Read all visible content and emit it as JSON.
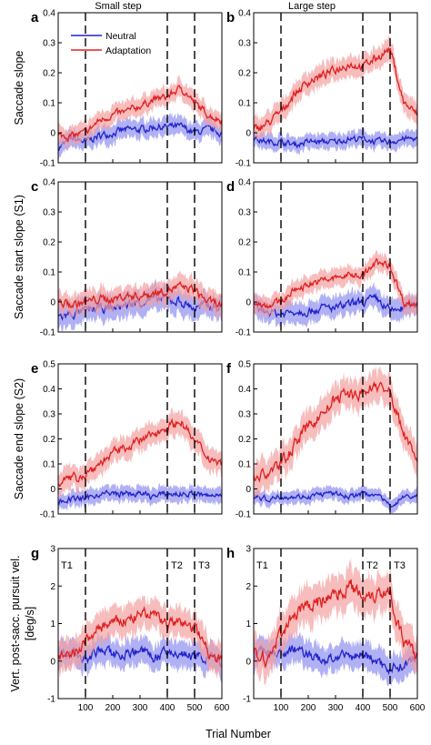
{
  "colors": {
    "neutral": "#2222cc",
    "adaptation": "#e02020",
    "neutral_band": "#8f8ff0",
    "adaptation_band": "#f4a0a0"
  },
  "column_titles": [
    "Small step",
    "Large step"
  ],
  "legend": [
    "Neutral",
    "Adaptation"
  ],
  "x_axis": {
    "label": "Trial Number",
    "range": [
      0,
      600
    ],
    "tick_values": [
      100,
      200,
      300,
      400,
      500,
      600
    ],
    "tick_labels": [
      "100",
      "200",
      "300",
      "400",
      "500",
      "600"
    ]
  },
  "rows": [
    {
      "ylabel": "Saccade slope",
      "ylim": [
        -0.1,
        0.4
      ],
      "tick_values": [
        -0.1,
        0,
        0.1,
        0.2,
        0.3,
        0.4
      ],
      "tick_labels": [
        "-0.1",
        "0",
        "0.1",
        "0.2",
        "0.3",
        "0.4"
      ]
    },
    {
      "ylabel": "Saccade start slope (S1)",
      "ylim": [
        -0.1,
        0.4
      ],
      "tick_values": [
        -0.1,
        0,
        0.1,
        0.2,
        0.3,
        0.4
      ],
      "tick_labels": [
        "-0.1",
        "0",
        "0.1",
        "0.2",
        "0.3",
        "0.4"
      ]
    },
    {
      "ylabel": "Saccade end slope (S2)",
      "ylim": [
        -0.1,
        0.5
      ],
      "tick_values": [
        -0.1,
        0,
        0.1,
        0.2,
        0.3,
        0.4,
        0.5
      ],
      "tick_labels": [
        "-0.1",
        "0",
        "0.1",
        "0.2",
        "0.3",
        "0.4",
        "0.5"
      ]
    },
    {
      "ylabel": "Vert. post-sacc. pursuit vel.",
      "ylabel2": "[deg/s]",
      "ylim": [
        -1,
        3
      ],
      "tick_values": [
        -1,
        0,
        1,
        2,
        3
      ],
      "tick_labels": [
        "-1",
        "0",
        "1",
        "2",
        "3"
      ]
    }
  ],
  "chart_data": [
    {
      "type": "line",
      "panel": "a",
      "x": [
        0,
        50,
        100,
        150,
        200,
        250,
        300,
        350,
        400,
        450,
        500,
        550,
        600
      ],
      "series": [
        {
          "name": "Neutral",
          "values": [
            -0.05,
            -0.02,
            -0.03,
            -0.01,
            0.0,
            0.01,
            0.01,
            0.02,
            0.02,
            0.02,
            0.0,
            0.01,
            0.0
          ],
          "band": 0.03
        },
        {
          "name": "Adaptation",
          "values": [
            -0.01,
            -0.01,
            0.0,
            0.04,
            0.06,
            0.07,
            0.09,
            0.11,
            0.12,
            0.15,
            0.1,
            0.06,
            0.04
          ],
          "band": 0.03
        }
      ],
      "vlines": [
        100,
        400,
        500
      ]
    },
    {
      "type": "line",
      "panel": "b",
      "x": [
        0,
        50,
        100,
        150,
        200,
        250,
        300,
        350,
        400,
        450,
        500,
        550,
        600
      ],
      "series": [
        {
          "name": "Neutral",
          "values": [
            -0.02,
            -0.03,
            -0.03,
            -0.04,
            -0.03,
            -0.03,
            -0.03,
            -0.02,
            -0.02,
            -0.03,
            -0.03,
            -0.02,
            -0.02
          ],
          "band": 0.025
        },
        {
          "name": "Adaptation",
          "values": [
            0.01,
            0.03,
            0.07,
            0.13,
            0.17,
            0.19,
            0.21,
            0.23,
            0.22,
            0.25,
            0.28,
            0.1,
            0.06
          ],
          "band": 0.035
        }
      ],
      "vlines": [
        100,
        400,
        500
      ]
    },
    {
      "type": "line",
      "panel": "c",
      "x": [
        0,
        50,
        100,
        150,
        200,
        250,
        300,
        350,
        400,
        450,
        500,
        550,
        600
      ],
      "series": [
        {
          "name": "Neutral",
          "values": [
            -0.05,
            -0.04,
            -0.03,
            -0.02,
            -0.02,
            -0.01,
            0.0,
            0.01,
            0.01,
            0.0,
            -0.02,
            -0.01,
            -0.02
          ],
          "band": 0.04
        },
        {
          "name": "Adaptation",
          "values": [
            0.0,
            -0.01,
            0.0,
            0.01,
            0.01,
            0.02,
            0.02,
            0.03,
            0.04,
            0.05,
            0.04,
            0.0,
            -0.01
          ],
          "band": 0.035
        }
      ],
      "vlines": [
        100,
        400,
        500
      ]
    },
    {
      "type": "line",
      "panel": "d",
      "x": [
        0,
        50,
        100,
        150,
        200,
        250,
        300,
        350,
        400,
        450,
        500,
        550,
        600
      ],
      "series": [
        {
          "name": "Neutral",
          "values": [
            -0.02,
            -0.03,
            -0.04,
            -0.03,
            -0.03,
            -0.02,
            -0.02,
            -0.01,
            0.0,
            0.01,
            -0.03,
            -0.02,
            -0.01
          ],
          "band": 0.035
        },
        {
          "name": "Adaptation",
          "values": [
            0.0,
            -0.01,
            0.0,
            0.04,
            0.06,
            0.07,
            0.08,
            0.09,
            0.09,
            0.13,
            0.12,
            0.0,
            -0.01
          ],
          "band": 0.03
        }
      ],
      "vlines": [
        100,
        400,
        500
      ]
    },
    {
      "type": "line",
      "panel": "e",
      "x": [
        0,
        50,
        100,
        150,
        200,
        250,
        300,
        350,
        400,
        450,
        500,
        550,
        600
      ],
      "series": [
        {
          "name": "Neutral",
          "values": [
            -0.05,
            -0.04,
            -0.04,
            -0.02,
            -0.02,
            -0.02,
            -0.02,
            -0.03,
            -0.02,
            -0.02,
            -0.02,
            -0.03,
            -0.02
          ],
          "band": 0.03
        },
        {
          "name": "Adaptation",
          "values": [
            0.03,
            0.04,
            0.06,
            0.1,
            0.14,
            0.17,
            0.19,
            0.22,
            0.25,
            0.27,
            0.19,
            0.13,
            0.1
          ],
          "band": 0.045
        }
      ],
      "vlines": [
        100,
        400,
        500
      ]
    },
    {
      "type": "line",
      "panel": "f",
      "x": [
        0,
        50,
        100,
        150,
        200,
        250,
        300,
        350,
        400,
        450,
        500,
        550,
        600
      ],
      "series": [
        {
          "name": "Neutral",
          "values": [
            -0.03,
            -0.04,
            -0.03,
            -0.03,
            -0.03,
            -0.02,
            -0.02,
            -0.03,
            -0.02,
            -0.02,
            -0.07,
            -0.03,
            -0.03
          ],
          "band": 0.025
        },
        {
          "name": "Adaptation",
          "values": [
            0.05,
            0.06,
            0.1,
            0.18,
            0.25,
            0.3,
            0.36,
            0.38,
            0.38,
            0.42,
            0.38,
            0.22,
            0.13
          ],
          "band": 0.06
        }
      ],
      "vlines": [
        100,
        400,
        500
      ]
    },
    {
      "type": "line",
      "panel": "g",
      "x": [
        0,
        50,
        100,
        150,
        200,
        250,
        300,
        350,
        400,
        450,
        500,
        550,
        600
      ],
      "series": [
        {
          "name": "Neutral",
          "values": [
            0.1,
            0.3,
            0.0,
            0.3,
            0.2,
            0.2,
            0.3,
            0.1,
            0.2,
            0.2,
            0.1,
            0.1,
            0.0
          ],
          "band": 0.35
        },
        {
          "name": "Adaptation",
          "values": [
            0.1,
            0.1,
            0.5,
            0.9,
            1.0,
            1.1,
            1.2,
            1.3,
            1.0,
            1.0,
            0.9,
            0.3,
            0.0
          ],
          "band": 0.4
        }
      ],
      "vlines": [
        100,
        400,
        500
      ],
      "annotations": [
        "T1",
        "T2",
        "T3"
      ]
    },
    {
      "type": "line",
      "panel": "h",
      "x": [
        0,
        50,
        100,
        150,
        200,
        250,
        300,
        350,
        400,
        450,
        500,
        550,
        600
      ],
      "series": [
        {
          "name": "Neutral",
          "values": [
            0.2,
            0.3,
            0.2,
            0.3,
            0.2,
            0.0,
            0.1,
            0.1,
            0.2,
            0.0,
            -0.2,
            -0.1,
            0.1
          ],
          "band": 0.35
        },
        {
          "name": "Adaptation",
          "values": [
            0.2,
            0.0,
            0.8,
            1.2,
            1.5,
            1.6,
            1.8,
            2.0,
            1.8,
            1.8,
            1.9,
            0.4,
            0.2
          ],
          "band": 0.5
        }
      ],
      "vlines": [
        100,
        400,
        500
      ],
      "annotations": [
        "T1",
        "T2",
        "T3"
      ]
    }
  ]
}
